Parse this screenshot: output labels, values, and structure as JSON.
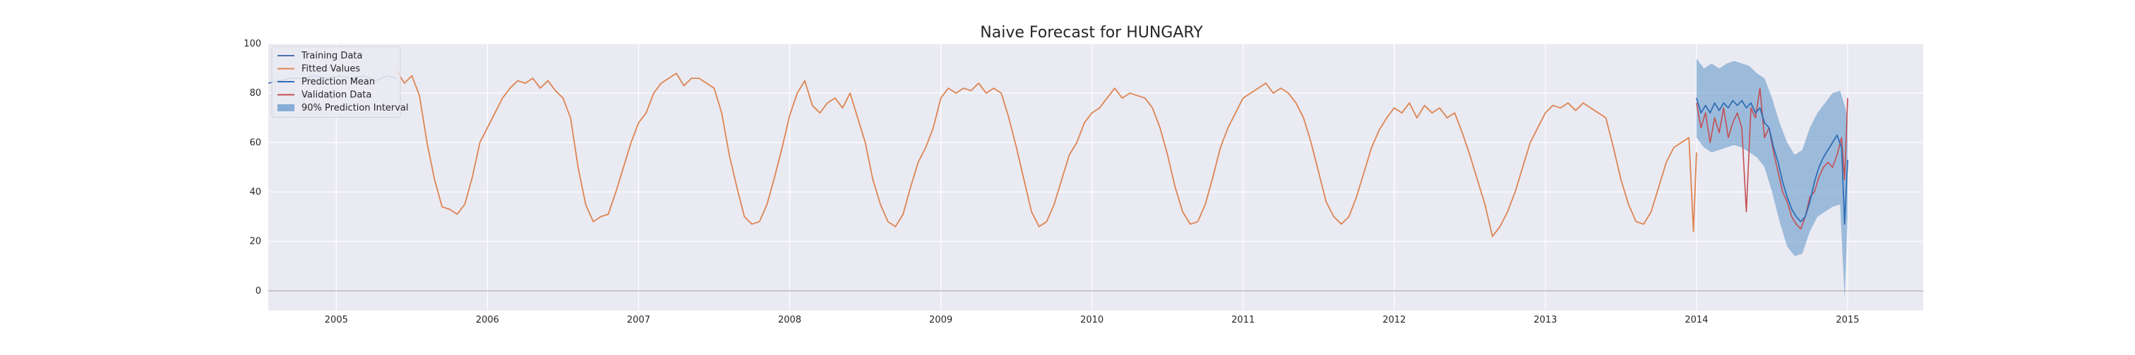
{
  "chart_data": {
    "type": "line",
    "title": "Naive Forecast for HUNGARY",
    "xlabel": "",
    "ylabel": "",
    "xlim": [
      2004.55,
      2015.5
    ],
    "ylim": [
      -8,
      100
    ],
    "y_ticks": [
      0,
      20,
      40,
      60,
      80,
      100
    ],
    "x_ticks": [
      "2005",
      "2006",
      "2007",
      "2008",
      "2009",
      "2010",
      "2011",
      "2012",
      "2013",
      "2014",
      "2015"
    ],
    "grid": true,
    "legend_position": "top-left",
    "hline": 0,
    "colors": {
      "background": "#eaeaf2",
      "training": "#4c72b0",
      "fitted": "#dd8452",
      "prediction": "#2f6db5",
      "validation": "#c44e52",
      "interval": "#5b93c9"
    },
    "legend": [
      {
        "key": "training",
        "label": "Training Data"
      },
      {
        "key": "fitted",
        "label": "Fitted Values"
      },
      {
        "key": "prediction",
        "label": "Prediction Mean"
      },
      {
        "key": "validation",
        "label": "Validation Data"
      },
      {
        "key": "interval",
        "label": "90% Prediction Interval"
      }
    ],
    "training": {
      "points": [
        [
          2004.55,
          84
        ],
        [
          2004.62,
          85
        ],
        [
          2004.7,
          86
        ],
        [
          2004.78,
          86
        ],
        [
          2004.86,
          87
        ],
        [
          2004.94,
          86
        ],
        [
          2005.02,
          87
        ],
        [
          2005.1,
          86
        ],
        [
          2005.18,
          87
        ],
        [
          2005.26,
          85
        ],
        [
          2005.34,
          87
        ],
        [
          2005.4,
          86
        ]
      ]
    },
    "fitted": {
      "points": [
        [
          2005.4,
          89
        ],
        [
          2005.45,
          84
        ],
        [
          2005.5,
          87
        ],
        [
          2005.55,
          79
        ],
        [
          2005.6,
          60
        ],
        [
          2005.65,
          45
        ],
        [
          2005.7,
          34
        ],
        [
          2005.75,
          33
        ],
        [
          2005.8,
          31
        ],
        [
          2005.85,
          35
        ],
        [
          2005.9,
          46
        ],
        [
          2005.95,
          60
        ],
        [
          2006.0,
          66
        ],
        [
          2006.05,
          72
        ],
        [
          2006.1,
          78
        ],
        [
          2006.15,
          82
        ],
        [
          2006.2,
          85
        ],
        [
          2006.25,
          84
        ],
        [
          2006.3,
          86
        ],
        [
          2006.35,
          82
        ],
        [
          2006.4,
          85
        ],
        [
          2006.45,
          81
        ],
        [
          2006.5,
          78
        ],
        [
          2006.55,
          70
        ],
        [
          2006.6,
          50
        ],
        [
          2006.65,
          35
        ],
        [
          2006.7,
          28
        ],
        [
          2006.75,
          30
        ],
        [
          2006.8,
          31
        ],
        [
          2006.85,
          40
        ],
        [
          2006.9,
          50
        ],
        [
          2006.95,
          60
        ],
        [
          2007.0,
          68
        ],
        [
          2007.05,
          72
        ],
        [
          2007.1,
          80
        ],
        [
          2007.15,
          84
        ],
        [
          2007.2,
          86
        ],
        [
          2007.25,
          88
        ],
        [
          2007.3,
          83
        ],
        [
          2007.35,
          86
        ],
        [
          2007.4,
          86
        ],
        [
          2007.45,
          84
        ],
        [
          2007.5,
          82
        ],
        [
          2007.55,
          72
        ],
        [
          2007.6,
          55
        ],
        [
          2007.65,
          42
        ],
        [
          2007.7,
          30
        ],
        [
          2007.75,
          27
        ],
        [
          2007.8,
          28
        ],
        [
          2007.85,
          35
        ],
        [
          2007.9,
          46
        ],
        [
          2007.95,
          58
        ],
        [
          2008.0,
          71
        ],
        [
          2008.05,
          80
        ],
        [
          2008.1,
          85
        ],
        [
          2008.15,
          75
        ],
        [
          2008.2,
          72
        ],
        [
          2008.25,
          76
        ],
        [
          2008.3,
          78
        ],
        [
          2008.35,
          74
        ],
        [
          2008.4,
          80
        ],
        [
          2008.45,
          70
        ],
        [
          2008.5,
          60
        ],
        [
          2008.55,
          45
        ],
        [
          2008.6,
          35
        ],
        [
          2008.65,
          28
        ],
        [
          2008.7,
          26
        ],
        [
          2008.75,
          31
        ],
        [
          2008.8,
          42
        ],
        [
          2008.85,
          52
        ],
        [
          2008.9,
          58
        ],
        [
          2008.95,
          66
        ],
        [
          2009.0,
          78
        ],
        [
          2009.05,
          82
        ],
        [
          2009.1,
          80
        ],
        [
          2009.15,
          82
        ],
        [
          2009.2,
          81
        ],
        [
          2009.25,
          84
        ],
        [
          2009.3,
          80
        ],
        [
          2009.35,
          82
        ],
        [
          2009.4,
          80
        ],
        [
          2009.45,
          70
        ],
        [
          2009.5,
          58
        ],
        [
          2009.55,
          45
        ],
        [
          2009.6,
          32
        ],
        [
          2009.65,
          26
        ],
        [
          2009.7,
          28
        ],
        [
          2009.75,
          35
        ],
        [
          2009.8,
          45
        ],
        [
          2009.85,
          55
        ],
        [
          2009.9,
          60
        ],
        [
          2009.95,
          68
        ],
        [
          2010.0,
          72
        ],
        [
          2010.05,
          74
        ],
        [
          2010.1,
          78
        ],
        [
          2010.15,
          82
        ],
        [
          2010.2,
          78
        ],
        [
          2010.25,
          80
        ],
        [
          2010.3,
          79
        ],
        [
          2010.35,
          78
        ],
        [
          2010.4,
          74
        ],
        [
          2010.45,
          66
        ],
        [
          2010.5,
          55
        ],
        [
          2010.55,
          42
        ],
        [
          2010.6,
          32
        ],
        [
          2010.65,
          27
        ],
        [
          2010.7,
          28
        ],
        [
          2010.75,
          35
        ],
        [
          2010.8,
          46
        ],
        [
          2010.85,
          58
        ],
        [
          2010.9,
          66
        ],
        [
          2010.95,
          72
        ],
        [
          2011.0,
          78
        ],
        [
          2011.05,
          80
        ],
        [
          2011.1,
          82
        ],
        [
          2011.15,
          84
        ],
        [
          2011.2,
          80
        ],
        [
          2011.25,
          82
        ],
        [
          2011.3,
          80
        ],
        [
          2011.35,
          76
        ],
        [
          2011.4,
          70
        ],
        [
          2011.45,
          60
        ],
        [
          2011.5,
          48
        ],
        [
          2011.55,
          36
        ],
        [
          2011.6,
          30
        ],
        [
          2011.65,
          27
        ],
        [
          2011.7,
          30
        ],
        [
          2011.75,
          38
        ],
        [
          2011.8,
          48
        ],
        [
          2011.85,
          58
        ],
        [
          2011.9,
          65
        ],
        [
          2011.95,
          70
        ],
        [
          2012.0,
          74
        ],
        [
          2012.05,
          72
        ],
        [
          2012.1,
          76
        ],
        [
          2012.15,
          70
        ],
        [
          2012.2,
          75
        ],
        [
          2012.25,
          72
        ],
        [
          2012.3,
          74
        ],
        [
          2012.35,
          70
        ],
        [
          2012.4,
          72
        ],
        [
          2012.45,
          64
        ],
        [
          2012.5,
          55
        ],
        [
          2012.55,
          45
        ],
        [
          2012.6,
          35
        ],
        [
          2012.65,
          22
        ],
        [
          2012.7,
          26
        ],
        [
          2012.75,
          32
        ],
        [
          2012.8,
          40
        ],
        [
          2012.85,
          50
        ],
        [
          2012.9,
          60
        ],
        [
          2012.95,
          66
        ],
        [
          2013.0,
          72
        ],
        [
          2013.05,
          75
        ],
        [
          2013.1,
          74
        ],
        [
          2013.15,
          76
        ],
        [
          2013.2,
          73
        ],
        [
          2013.25,
          76
        ],
        [
          2013.3,
          74
        ],
        [
          2013.35,
          72
        ],
        [
          2013.4,
          70
        ],
        [
          2013.45,
          58
        ],
        [
          2013.5,
          45
        ],
        [
          2013.55,
          35
        ],
        [
          2013.6,
          28
        ],
        [
          2013.65,
          27
        ],
        [
          2013.7,
          32
        ],
        [
          2013.75,
          42
        ],
        [
          2013.8,
          52
        ],
        [
          2013.85,
          58
        ],
        [
          2013.9,
          60
        ],
        [
          2013.95,
          62
        ],
        [
          2013.98,
          24
        ],
        [
          2014.0,
          56
        ]
      ]
    },
    "interval": {
      "points": [
        [
          2014.0,
          94,
          62
        ],
        [
          2014.05,
          90,
          58
        ],
        [
          2014.1,
          92,
          56
        ],
        [
          2014.15,
          90,
          57
        ],
        [
          2014.2,
          92,
          58
        ],
        [
          2014.25,
          93,
          59
        ],
        [
          2014.3,
          92,
          58
        ],
        [
          2014.35,
          91,
          56
        ],
        [
          2014.4,
          88,
          54
        ],
        [
          2014.45,
          86,
          50
        ],
        [
          2014.5,
          78,
          40
        ],
        [
          2014.55,
          68,
          28
        ],
        [
          2014.6,
          60,
          18
        ],
        [
          2014.65,
          55,
          14
        ],
        [
          2014.7,
          57,
          15
        ],
        [
          2014.75,
          66,
          24
        ],
        [
          2014.8,
          72,
          30
        ],
        [
          2014.85,
          76,
          32
        ],
        [
          2014.9,
          80,
          34
        ],
        [
          2014.95,
          81,
          35
        ],
        [
          2014.98,
          75,
          -3
        ],
        [
          2015.0,
          70,
          30
        ]
      ]
    },
    "prediction": {
      "points": [
        [
          2014.0,
          78
        ],
        [
          2014.03,
          72
        ],
        [
          2014.06,
          75
        ],
        [
          2014.09,
          72
        ],
        [
          2014.12,
          76
        ],
        [
          2014.15,
          73
        ],
        [
          2014.18,
          76
        ],
        [
          2014.21,
          74
        ],
        [
          2014.24,
          77
        ],
        [
          2014.27,
          75
        ],
        [
          2014.3,
          77
        ],
        [
          2014.33,
          74
        ],
        [
          2014.36,
          76
        ],
        [
          2014.39,
          72
        ],
        [
          2014.42,
          74
        ],
        [
          2014.45,
          68
        ],
        [
          2014.48,
          66
        ],
        [
          2014.51,
          58
        ],
        [
          2014.54,
          52
        ],
        [
          2014.57,
          44
        ],
        [
          2014.6,
          38
        ],
        [
          2014.63,
          33
        ],
        [
          2014.66,
          30
        ],
        [
          2014.69,
          28
        ],
        [
          2014.72,
          30
        ],
        [
          2014.75,
          36
        ],
        [
          2014.78,
          44
        ],
        [
          2014.81,
          50
        ],
        [
          2014.84,
          54
        ],
        [
          2014.87,
          57
        ],
        [
          2014.9,
          60
        ],
        [
          2014.93,
          63
        ],
        [
          2014.96,
          58
        ],
        [
          2014.98,
          27
        ],
        [
          2015.0,
          53
        ]
      ]
    },
    "validation": {
      "points": [
        [
          2014.0,
          76
        ],
        [
          2014.03,
          66
        ],
        [
          2014.06,
          72
        ],
        [
          2014.09,
          60
        ],
        [
          2014.12,
          70
        ],
        [
          2014.15,
          64
        ],
        [
          2014.18,
          74
        ],
        [
          2014.21,
          62
        ],
        [
          2014.24,
          68
        ],
        [
          2014.27,
          72
        ],
        [
          2014.3,
          66
        ],
        [
          2014.33,
          32
        ],
        [
          2014.36,
          74
        ],
        [
          2014.39,
          70
        ],
        [
          2014.42,
          82
        ],
        [
          2014.45,
          62
        ],
        [
          2014.48,
          66
        ],
        [
          2014.51,
          56
        ],
        [
          2014.54,
          48
        ],
        [
          2014.57,
          40
        ],
        [
          2014.6,
          36
        ],
        [
          2014.63,
          30
        ],
        [
          2014.66,
          27
        ],
        [
          2014.69,
          25
        ],
        [
          2014.72,
          30
        ],
        [
          2014.75,
          38
        ],
        [
          2014.78,
          40
        ],
        [
          2014.81,
          46
        ],
        [
          2014.84,
          50
        ],
        [
          2014.87,
          52
        ],
        [
          2014.9,
          50
        ],
        [
          2014.93,
          55
        ],
        [
          2014.96,
          62
        ],
        [
          2014.98,
          45
        ],
        [
          2015.0,
          78
        ]
      ]
    }
  }
}
